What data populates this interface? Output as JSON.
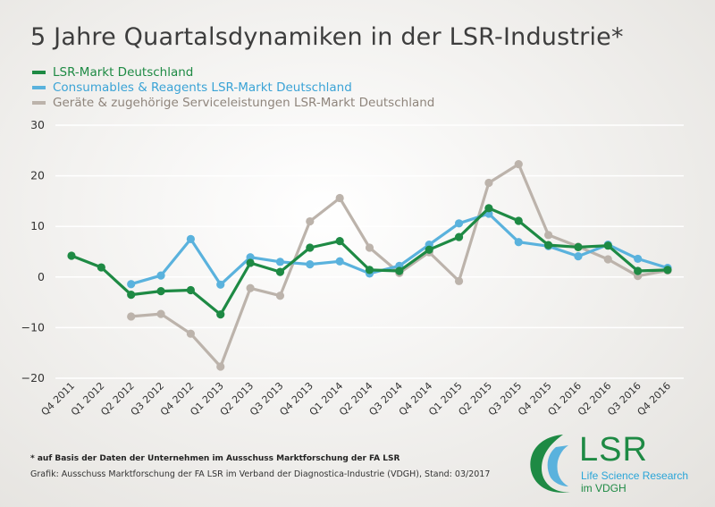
{
  "title": "5 Jahre Quartalsdynamiken in der LSR-Industrie*",
  "footnote": "* auf Basis der Daten der Unternehmen im Ausschuss Marktforschung der FA LSR",
  "source": "Grafik: Ausschuss Marktforschung der FA LSR im Verband der Diagnostica-Industrie (VDGH), Stand: 03/2017",
  "logo": {
    "name": "LSR",
    "line1": "Life Science Research",
    "line2": "im VDGH"
  },
  "colors": {
    "green": "#1e8a44",
    "blue": "#5ab2dd",
    "gray": "#bcb3ab"
  },
  "chart_data": {
    "type": "line",
    "title": "5 Jahre Quartalsdynamiken in der LSR-Industrie*",
    "xlabel": "",
    "ylabel": "",
    "ylim": [
      -20,
      30
    ],
    "yticks": [
      30,
      20,
      10,
      0,
      -10,
      -20
    ],
    "ytick_labels": [
      "30",
      "20",
      "10",
      "0",
      "−10",
      "−20"
    ],
    "grid": true,
    "legend_position": "top-left",
    "categories": [
      "Q4 2011",
      "Q1 2012",
      "Q2 2012",
      "Q3 2012",
      "Q4 2012",
      "Q1 2013",
      "Q2 2013",
      "Q3 2013",
      "Q4 2013",
      "Q1 2014",
      "Q2 2014",
      "Q3 2014",
      "Q4 2014",
      "Q1 2015",
      "Q2 2015",
      "Q3 2015",
      "Q4 2015",
      "Q1 2016",
      "Q2 2016",
      "Q3 2016",
      "Q4 2016"
    ],
    "series": [
      {
        "name": "Geräte & zugehörige Serviceleistungen LSR-Markt Deutschland",
        "color": "#bcb3ab",
        "values": [
          null,
          null,
          -7.8,
          -7.3,
          -11.2,
          -17.7,
          -2.2,
          -3.7,
          11.0,
          15.6,
          5.8,
          0.8,
          4.9,
          -0.8,
          18.6,
          22.3,
          8.3,
          6.0,
          3.5,
          0.2,
          1.3
        ]
      },
      {
        "name": "Consumables & Reagents LSR-Markt Deutschland",
        "color": "#5ab2dd",
        "values": [
          null,
          null,
          -1.4,
          0.3,
          7.5,
          -1.5,
          3.9,
          3.0,
          2.5,
          3.1,
          0.7,
          2.2,
          6.4,
          10.6,
          12.5,
          6.9,
          6.1,
          4.1,
          6.4,
          3.6,
          1.8
        ]
      },
      {
        "name": "LSR-Markt Deutschland",
        "color": "#1e8a44",
        "values": [
          4.2,
          1.9,
          -3.5,
          -2.8,
          -2.6,
          -7.4,
          2.8,
          1.0,
          5.8,
          7.1,
          1.4,
          1.2,
          5.4,
          7.9,
          13.6,
          11.1,
          6.3,
          5.9,
          6.2,
          1.2,
          1.4
        ]
      }
    ]
  }
}
